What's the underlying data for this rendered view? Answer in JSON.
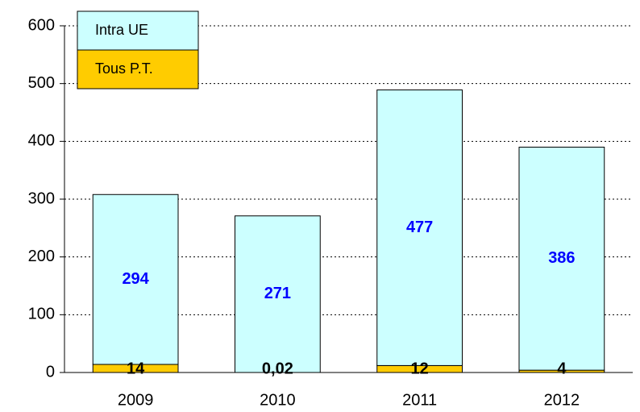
{
  "chart_data": {
    "type": "stacked_bar",
    "categories": [
      "2009",
      "2010",
      "2011",
      "2012"
    ],
    "series": [
      {
        "name": "Tous P.T.",
        "color": "#ffcc00",
        "label_color": "#000000",
        "values": [
          14,
          0.02,
          12,
          4
        ],
        "value_labels": [
          "14",
          "0,02",
          "12",
          "4"
        ]
      },
      {
        "name": "Intra UE",
        "color": "#ccffff",
        "label_color": "#0000ff",
        "values": [
          294,
          271,
          477,
          386
        ]
      }
    ],
    "ylim": [
      0,
      600
    ],
    "yticks": [
      0,
      100,
      200,
      300,
      400,
      500,
      600
    ],
    "grid": true,
    "legend": "upper left"
  }
}
